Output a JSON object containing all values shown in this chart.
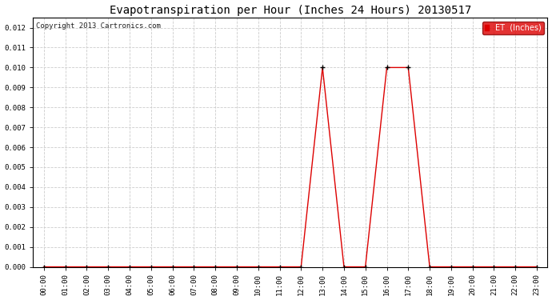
{
  "title": "Evapotranspiration per Hour (Inches 24 Hours) 20130517",
  "copyright": "Copyright 2013 Cartronics.com",
  "legend_label": "ET  (Inches)",
  "legend_bg": "#dd0000",
  "legend_text_color": "#ffffff",
  "line_color": "#dd0000",
  "marker_color": "#000000",
  "bg_color": "#ffffff",
  "plot_bg": "#ffffff",
  "grid_color": "#cccccc",
  "title_color": "#000000",
  "ylim": [
    0.0,
    0.0125
  ],
  "yticks": [
    0.0,
    0.001,
    0.002,
    0.003,
    0.004,
    0.005,
    0.006,
    0.007,
    0.008,
    0.009,
    0.01,
    0.011,
    0.012
  ],
  "hours": [
    0,
    1,
    2,
    3,
    4,
    5,
    6,
    7,
    8,
    9,
    10,
    11,
    12,
    13,
    14,
    15,
    16,
    17,
    18,
    19,
    20,
    21,
    22,
    23
  ],
  "et_values": [
    0.0,
    0.0,
    0.0,
    0.0,
    0.0,
    0.0,
    0.0,
    0.0,
    0.0,
    0.0,
    0.0,
    0.0,
    0.0,
    0.01,
    0.0,
    0.0,
    0.01,
    0.01,
    0.0,
    0.0,
    0.0,
    0.0,
    0.0,
    0.0
  ],
  "xtick_labels": [
    "00:00",
    "01:00",
    "02:00",
    "03:00",
    "04:00",
    "05:00",
    "06:00",
    "07:00",
    "08:00",
    "09:00",
    "10:00",
    "11:00",
    "12:00",
    "13:00",
    "14:00",
    "15:00",
    "16:00",
    "17:00",
    "18:00",
    "19:00",
    "20:00",
    "21:00",
    "22:00",
    "23:00"
  ]
}
